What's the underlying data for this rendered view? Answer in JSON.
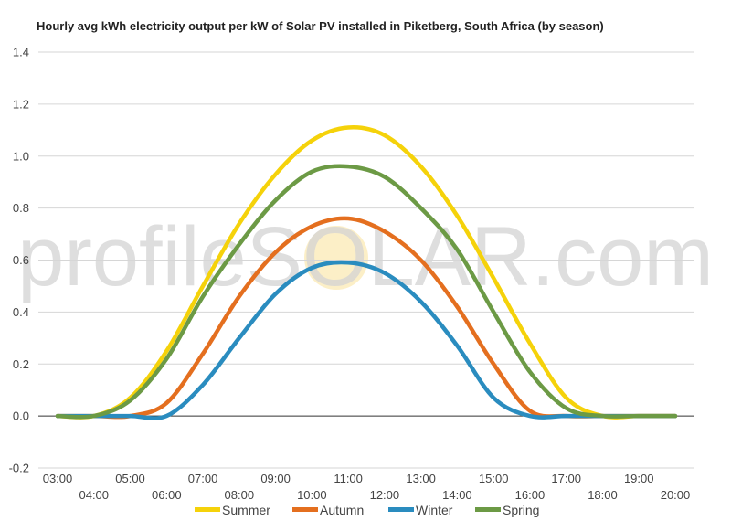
{
  "chart_data": {
    "type": "line",
    "title": "Hourly avg kWh electricity output per kW of Solar PV installed in Piketberg, South Africa (by season)",
    "xlabel": "",
    "ylabel": "",
    "ylim": [
      -0.2,
      1.4
    ],
    "yticks": [
      "-0.2",
      "0.0",
      "0.2",
      "0.4",
      "0.6",
      "0.8",
      "1.0",
      "1.2",
      "1.4"
    ],
    "x": [
      "03:00",
      "04:00",
      "05:00",
      "06:00",
      "07:00",
      "08:00",
      "09:00",
      "10:00",
      "11:00",
      "12:00",
      "13:00",
      "14:00",
      "15:00",
      "16:00",
      "17:00",
      "18:00",
      "19:00",
      "20:00"
    ],
    "grid": true,
    "legend": "bottom",
    "series": [
      {
        "name": "Summer",
        "color": "#f5d20a",
        "values": [
          0.0,
          0.0,
          0.07,
          0.25,
          0.5,
          0.74,
          0.93,
          1.06,
          1.11,
          1.08,
          0.96,
          0.77,
          0.53,
          0.28,
          0.07,
          0.0,
          0.0,
          0.0
        ]
      },
      {
        "name": "Autumn",
        "color": "#e46f1f",
        "values": [
          0.0,
          0.0,
          0.0,
          0.05,
          0.24,
          0.46,
          0.63,
          0.73,
          0.76,
          0.71,
          0.6,
          0.42,
          0.2,
          0.02,
          0.0,
          0.0,
          0.0,
          0.0
        ]
      },
      {
        "name": "Winter",
        "color": "#2a8cbf",
        "values": [
          0.0,
          0.0,
          0.0,
          0.0,
          0.12,
          0.3,
          0.47,
          0.57,
          0.59,
          0.55,
          0.44,
          0.27,
          0.07,
          0.0,
          0.0,
          0.0,
          0.0,
          0.0
        ]
      },
      {
        "name": "Spring",
        "color": "#6c9a45",
        "values": [
          0.0,
          0.0,
          0.06,
          0.22,
          0.46,
          0.66,
          0.83,
          0.94,
          0.96,
          0.92,
          0.8,
          0.64,
          0.4,
          0.17,
          0.03,
          0.0,
          0.0,
          0.0
        ]
      }
    ]
  },
  "watermark": "profileSOLAR.com"
}
